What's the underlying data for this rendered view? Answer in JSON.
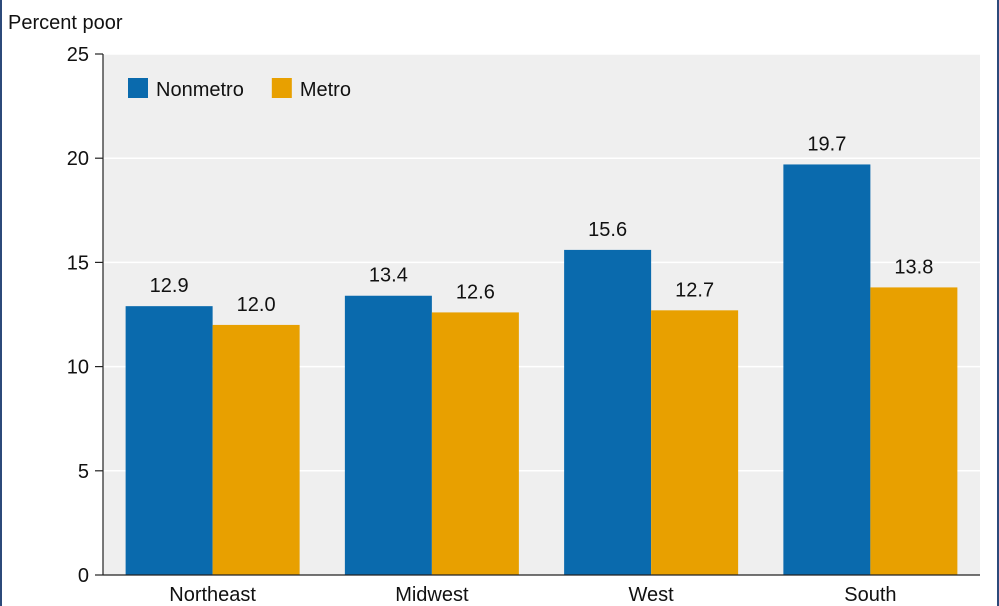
{
  "chart_data": {
    "type": "bar",
    "ylabel": "Percent poor",
    "categories": [
      "Northeast",
      "Midwest",
      "West",
      "South"
    ],
    "series": [
      {
        "name": "Nonmetro",
        "values": [
          12.9,
          13.4,
          15.6,
          19.7
        ],
        "labels": [
          "12.9",
          "13.4",
          "15.6",
          "19.7"
        ],
        "color": "#0a6aad"
      },
      {
        "name": "Metro",
        "values": [
          12.0,
          12.6,
          12.7,
          13.8
        ],
        "labels": [
          "12.0",
          "12.6",
          "12.7",
          "13.8"
        ],
        "color": "#e8a000"
      }
    ],
    "ylim": [
      0,
      25
    ],
    "yticks": [
      "0",
      "5",
      "10",
      "15",
      "20",
      "25"
    ],
    "legend_position": "top-left",
    "grid": true,
    "plot_background": "#efefef"
  }
}
